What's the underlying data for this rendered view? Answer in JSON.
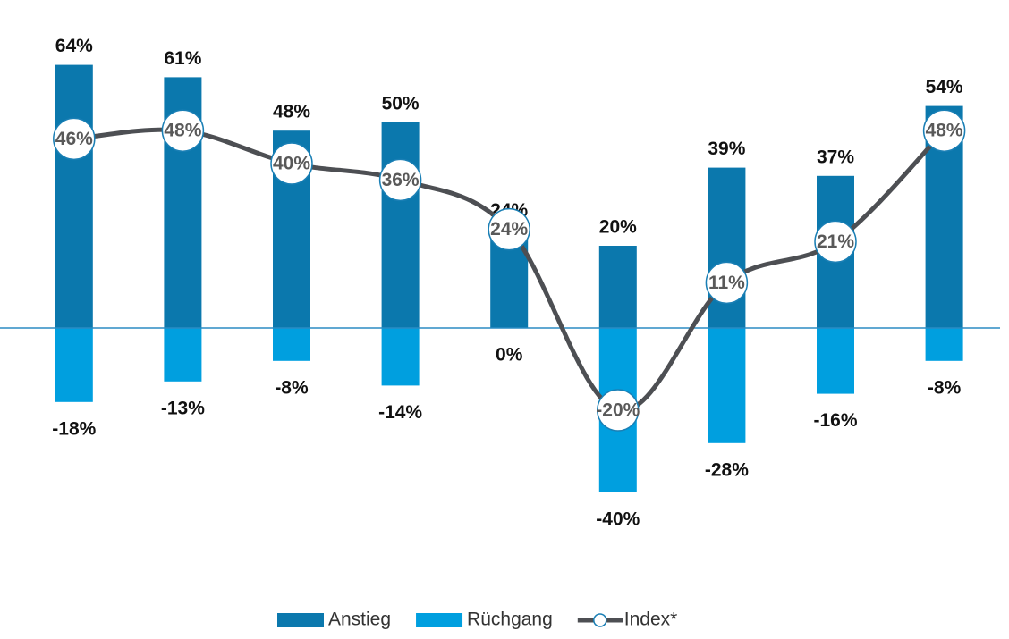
{
  "chart_data": {
    "type": "bar-line",
    "categories": [
      null,
      null,
      null,
      null,
      null,
      null,
      null,
      null,
      null
    ],
    "ylim": [
      -50,
      70
    ],
    "series": [
      {
        "name": "Anstieg",
        "type": "bar",
        "color": "#0b78ad",
        "values": [
          64,
          61,
          48,
          50,
          24,
          20,
          39,
          37,
          54
        ],
        "value_labels": [
          "64%",
          "61%",
          "48%",
          "50%",
          "24%",
          "20%",
          "39%",
          "37%",
          "54%"
        ]
      },
      {
        "name": "Rüchgang",
        "type": "bar",
        "color": "#009fdf",
        "values": [
          -18,
          -13,
          -8,
          -14,
          0,
          -40,
          -28,
          -16,
          -8
        ],
        "value_labels": [
          "-18%",
          "-13%",
          "-8%",
          "-14%",
          "0%",
          "-40%",
          "-28%",
          "-16%",
          "-8%"
        ]
      },
      {
        "name": "Index*",
        "type": "line",
        "color": "#4d4f53",
        "values": [
          46,
          48,
          40,
          36,
          24,
          -20,
          11,
          21,
          48
        ],
        "value_labels": [
          "46%",
          "48%",
          "40%",
          "36%",
          "24%",
          "-20%",
          "11%",
          "21%",
          "48%"
        ]
      }
    ]
  }
}
